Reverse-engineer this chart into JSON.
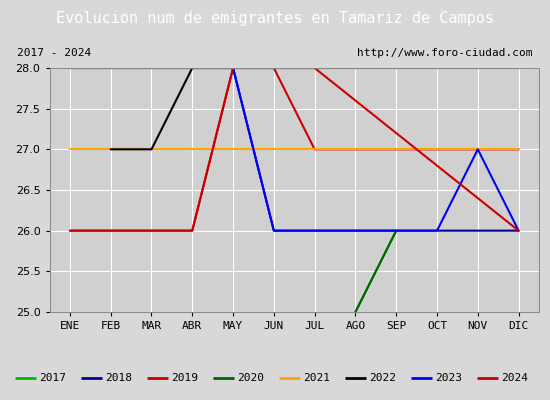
{
  "title": "Evolucion num de emigrantes en Tamariz de Campos",
  "subtitle_left": "2017 - 2024",
  "subtitle_right": "http://www.foro-ciudad.com",
  "ylim": [
    25.0,
    28.0
  ],
  "yticks": [
    25.0,
    25.5,
    26.0,
    26.5,
    27.0,
    27.5,
    28.0
  ],
  "months": [
    "ENE",
    "FEB",
    "MAR",
    "ABR",
    "MAY",
    "JUN",
    "JUL",
    "AGO",
    "SEP",
    "OCT",
    "NOV",
    "DIC"
  ],
  "series": {
    "2017": {
      "color": "#00bb00",
      "x": [
        8,
        9
      ],
      "y": [
        25.0,
        26.0
      ]
    },
    "2018": {
      "color": "#00008b",
      "x": [
        1,
        4,
        5,
        6,
        12
      ],
      "y": [
        28.0,
        28.0,
        28.0,
        26.0,
        26.0
      ]
    },
    "2019": {
      "color": "#cc0000",
      "x": [
        1,
        2,
        4,
        5,
        6,
        7,
        12
      ],
      "y": [
        26.0,
        26.0,
        26.0,
        28.0,
        28.0,
        27.0,
        27.0
      ]
    },
    "2020": {
      "color": "#006400",
      "x": [
        8,
        9
      ],
      "y": [
        25.0,
        26.0
      ]
    },
    "2021": {
      "color": "#ffa500",
      "x": [
        1,
        12
      ],
      "y": [
        27.0,
        27.0
      ]
    },
    "2022": {
      "color": "#000000",
      "x": [
        2,
        3,
        4,
        12
      ],
      "y": [
        27.0,
        27.0,
        28.0,
        28.0
      ]
    },
    "2023": {
      "color": "#0000ff",
      "x": [
        1,
        5,
        6,
        10,
        11,
        12
      ],
      "y": [
        28.0,
        28.0,
        26.0,
        26.0,
        27.0,
        26.0
      ]
    },
    "2024": {
      "color": "#cc0000",
      "x": [
        1,
        4,
        5,
        7,
        12
      ],
      "y": [
        26.0,
        26.0,
        28.0,
        28.0,
        26.0
      ]
    }
  },
  "legend_order": [
    "2017",
    "2018",
    "2019",
    "2020",
    "2021",
    "2022",
    "2023",
    "2024"
  ],
  "legend_colors": {
    "2017": "#00bb00",
    "2018": "#00008b",
    "2019": "#cc0000",
    "2020": "#006400",
    "2021": "#ffa500",
    "2022": "#000000",
    "2023": "#0000ff",
    "2024": "#cc0000"
  },
  "bg_color": "#d8d8d8",
  "plot_bg_color": "#d0d0d0",
  "subtitle_bg_color": "#f0f0f0",
  "title_bg_color": "#4472c4",
  "title_fg_color": "#ffffff",
  "grid_color": "#ffffff",
  "title_fontsize": 11,
  "subtitle_fontsize": 8,
  "tick_fontsize": 8,
  "legend_fontsize": 8
}
